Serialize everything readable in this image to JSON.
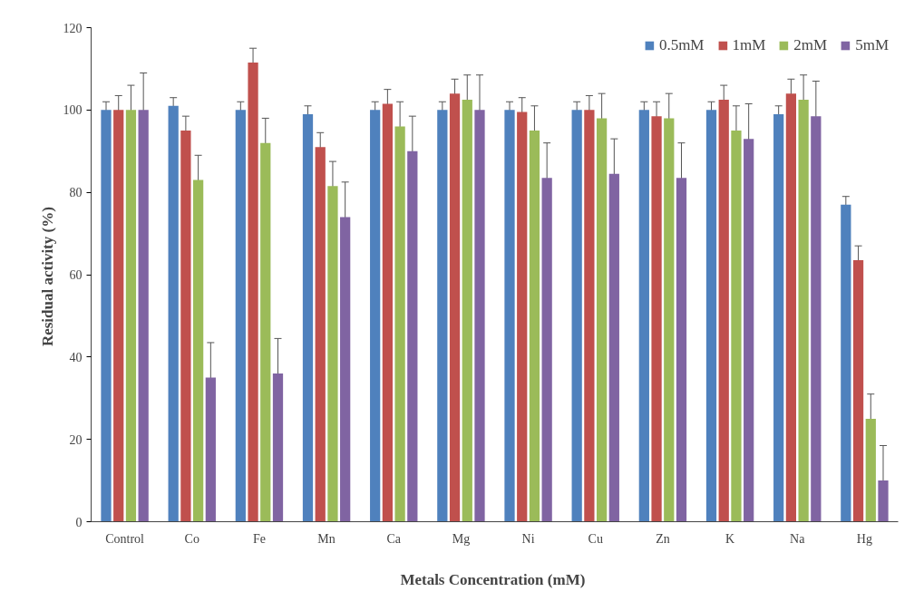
{
  "chart_data": {
    "type": "bar",
    "xlabel": "Metals Concentration  (mM)",
    "ylabel": "Residual activity  (%)",
    "categories": [
      "Control",
      "Co",
      "Fe",
      "Mn",
      "Ca",
      "Mg",
      "Ni",
      "Cu",
      "Zn",
      "K",
      "Na",
      "Hg"
    ],
    "ylim": [
      0,
      120
    ],
    "yticks": [
      0,
      20,
      40,
      60,
      80,
      100,
      120
    ],
    "grid": false,
    "legend": "top right",
    "series": [
      {
        "name": "0.5mM",
        "color": "#4f81bd",
        "values": [
          100,
          101,
          100,
          99,
          100,
          100,
          100,
          100,
          100,
          100,
          99,
          77
        ],
        "errors": [
          2,
          2,
          2,
          2,
          2,
          2,
          2,
          2,
          2,
          2,
          2,
          2
        ]
      },
      {
        "name": "1mM",
        "color": "#c0504d",
        "values": [
          100,
          95,
          111.5,
          91,
          101.5,
          104,
          99.5,
          100,
          98.5,
          102.5,
          104,
          63.5
        ],
        "errors": [
          3.5,
          3.5,
          3.5,
          3.5,
          3.5,
          3.5,
          3.5,
          3.5,
          3.5,
          3.5,
          3.5,
          3.5
        ]
      },
      {
        "name": "2mM",
        "color": "#9bbb59",
        "values": [
          100,
          83,
          92,
          81.5,
          96,
          102.5,
          95,
          98,
          98,
          95,
          102.5,
          25
        ],
        "errors": [
          6,
          6,
          6,
          6,
          6,
          6,
          6,
          6,
          6,
          6,
          6,
          6
        ]
      },
      {
        "name": "5mM",
        "color": "#8064a2",
        "values": [
          100,
          35,
          36,
          74,
          90,
          100,
          83.5,
          84.5,
          83.5,
          93,
          98.5,
          10
        ],
        "errors": [
          9,
          8.5,
          8.5,
          8.5,
          8.5,
          8.5,
          8.5,
          8.5,
          8.5,
          8.5,
          8.5,
          8.5
        ]
      }
    ]
  }
}
